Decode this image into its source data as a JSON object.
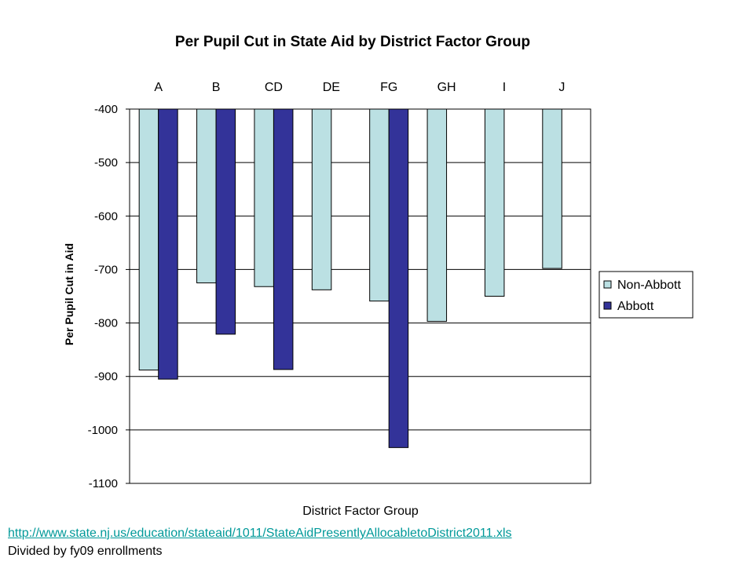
{
  "chart_data": {
    "type": "bar",
    "title": "Per Pupil Cut in State Aid by District Factor Group",
    "xlabel": "District Factor Group",
    "ylabel": "Per Pupil Cut in Aid",
    "ylim": [
      -1100,
      -400
    ],
    "yticks": [
      -400,
      -500,
      -600,
      -700,
      -800,
      -900,
      -1000,
      -1100
    ],
    "grid": true,
    "categories_position": "top",
    "legend_position": "right",
    "categories": [
      "A",
      "B",
      "CD",
      "DE",
      "FG",
      "GH",
      "I",
      "J"
    ],
    "series": [
      {
        "name": "Non-Abbott",
        "color": "#BBE0E3",
        "values": [
          -888,
          -725,
          -732,
          -738,
          -759,
          -797,
          -750,
          -698
        ]
      },
      {
        "name": "Abbott",
        "color": "#333399",
        "values": [
          -905,
          -821,
          -887,
          null,
          -1033,
          null,
          null,
          null
        ]
      }
    ]
  },
  "footer": {
    "source_link": "http://www.state.nj.us/education/stateaid/1011/StateAidPresentlyAllocabletoDistrict2011.xls",
    "note": "Divided by fy09 enrollments"
  }
}
